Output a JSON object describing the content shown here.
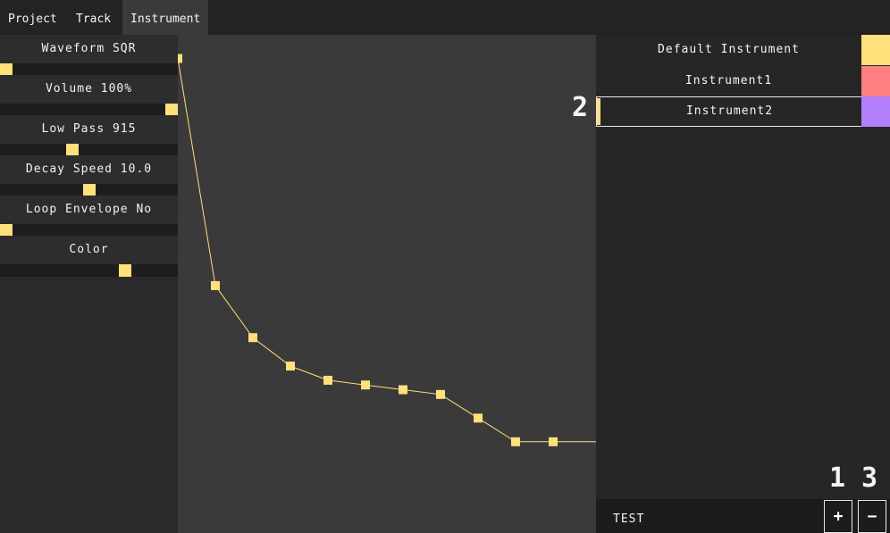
{
  "tabs": [
    {
      "label": "Project",
      "active": false
    },
    {
      "label": "Track",
      "active": false
    },
    {
      "label": "Instrument",
      "active": true
    }
  ],
  "params": [
    {
      "label": "Waveform SQR",
      "value": 0.0
    },
    {
      "label": "Volume 100%",
      "value": 1.0
    },
    {
      "label": "Low Pass 915",
      "value": 0.4
    },
    {
      "label": "Decay Speed 10.0",
      "value": 0.5
    },
    {
      "label": "Loop Envelope No",
      "value": 0.0
    },
    {
      "label": "Color",
      "value": 0.72
    }
  ],
  "envelope": {
    "color": "#ffe07a",
    "points": [
      [
        0.0,
        0.95
      ],
      [
        0.1,
        0.47
      ],
      [
        0.2,
        0.36
      ],
      [
        0.3,
        0.3
      ],
      [
        0.4,
        0.27
      ],
      [
        0.5,
        0.26
      ],
      [
        0.6,
        0.25
      ],
      [
        0.7,
        0.24
      ],
      [
        0.8,
        0.19
      ],
      [
        0.9,
        0.14
      ],
      [
        1.0,
        0.14
      ]
    ]
  },
  "instruments": [
    {
      "name": "Default Instrument",
      "color": "#ffe07a",
      "selected": false
    },
    {
      "name": "Instrument1",
      "color": "#ff8080",
      "selected": false
    },
    {
      "name": "Instrument2",
      "color": "#b380ff",
      "selected": true
    }
  ],
  "hints": {
    "selected": "2",
    "add": "1",
    "remove": "3"
  },
  "bottom": {
    "label": "TEST",
    "add_label": "+",
    "remove_label": "−"
  }
}
